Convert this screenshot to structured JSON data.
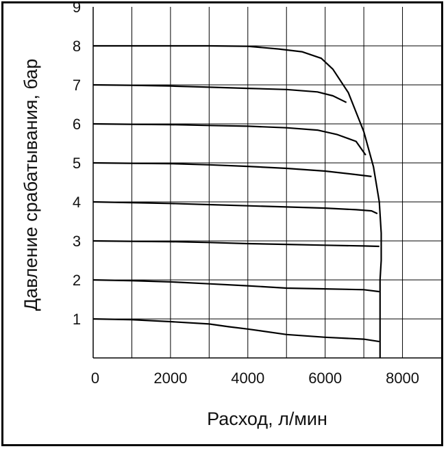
{
  "chart_data": {
    "type": "line",
    "xlabel": "Расход, л/мин",
    "ylabel": "Давление срабатывания, бар",
    "xlim": [
      0,
      9000
    ],
    "ylim": [
      0,
      9
    ],
    "x_ticks": [
      "0",
      "2000",
      "4000",
      "6000",
      "8000"
    ],
    "y_ticks": [
      "1",
      "2",
      "3",
      "4",
      "5",
      "6",
      "7",
      "8",
      "9"
    ],
    "grid": true,
    "series": [
      {
        "points": [
          [
            0,
            1.0
          ],
          [
            1000,
            0.98
          ],
          [
            2000,
            0.93
          ],
          [
            3000,
            0.87
          ],
          [
            3500,
            0.8
          ],
          [
            4000,
            0.74
          ],
          [
            5000,
            0.6
          ],
          [
            6000,
            0.53
          ],
          [
            7000,
            0.48
          ],
          [
            7400,
            0.42
          ]
        ]
      },
      {
        "points": [
          [
            0,
            2.0
          ],
          [
            1000,
            1.98
          ],
          [
            2000,
            1.95
          ],
          [
            3000,
            1.9
          ],
          [
            4000,
            1.85
          ],
          [
            5000,
            1.79
          ],
          [
            6000,
            1.77
          ],
          [
            7000,
            1.75
          ],
          [
            7400,
            1.7
          ]
        ]
      },
      {
        "points": [
          [
            0,
            3.0
          ],
          [
            1000,
            2.99
          ],
          [
            2000,
            2.98
          ],
          [
            3000,
            2.96
          ],
          [
            4000,
            2.93
          ],
          [
            5000,
            2.91
          ],
          [
            6000,
            2.89
          ],
          [
            7000,
            2.87
          ],
          [
            7400,
            2.86
          ]
        ]
      },
      {
        "points": [
          [
            0,
            4.0
          ],
          [
            1000,
            3.98
          ],
          [
            2000,
            3.96
          ],
          [
            3000,
            3.93
          ],
          [
            4000,
            3.9
          ],
          [
            5000,
            3.87
          ],
          [
            6000,
            3.84
          ],
          [
            6800,
            3.8
          ],
          [
            7200,
            3.77
          ],
          [
            7350,
            3.7
          ]
        ]
      },
      {
        "points": [
          [
            0,
            5.0
          ],
          [
            1000,
            4.99
          ],
          [
            2000,
            4.98
          ],
          [
            3000,
            4.95
          ],
          [
            4000,
            4.91
          ],
          [
            5000,
            4.86
          ],
          [
            6000,
            4.79
          ],
          [
            6800,
            4.7
          ],
          [
            7200,
            4.65
          ]
        ]
      },
      {
        "points": [
          [
            0,
            6.0
          ],
          [
            1000,
            5.99
          ],
          [
            2000,
            5.98
          ],
          [
            3000,
            5.96
          ],
          [
            4000,
            5.94
          ],
          [
            5000,
            5.9
          ],
          [
            5800,
            5.84
          ],
          [
            6300,
            5.73
          ],
          [
            6800,
            5.55
          ],
          [
            7050,
            5.2
          ]
        ]
      },
      {
        "points": [
          [
            0,
            7.0
          ],
          [
            1000,
            6.99
          ],
          [
            2000,
            6.97
          ],
          [
            3000,
            6.94
          ],
          [
            4000,
            6.91
          ],
          [
            5000,
            6.88
          ],
          [
            5800,
            6.82
          ],
          [
            6200,
            6.72
          ],
          [
            6550,
            6.55
          ]
        ]
      },
      {
        "points": [
          [
            0,
            8.0
          ],
          [
            1000,
            8.0
          ],
          [
            2000,
            8.0
          ],
          [
            3000,
            8.0
          ],
          [
            4000,
            7.99
          ],
          [
            4800,
            7.92
          ],
          [
            5400,
            7.85
          ],
          [
            5900,
            7.68
          ],
          [
            6200,
            7.4
          ],
          [
            6600,
            6.8
          ],
          [
            7000,
            5.8
          ],
          [
            7250,
            4.9
          ],
          [
            7400,
            4.0
          ],
          [
            7450,
            3.2
          ],
          [
            7450,
            2.5
          ],
          [
            7420,
            2.0
          ],
          [
            7420,
            0.0
          ]
        ]
      }
    ]
  }
}
